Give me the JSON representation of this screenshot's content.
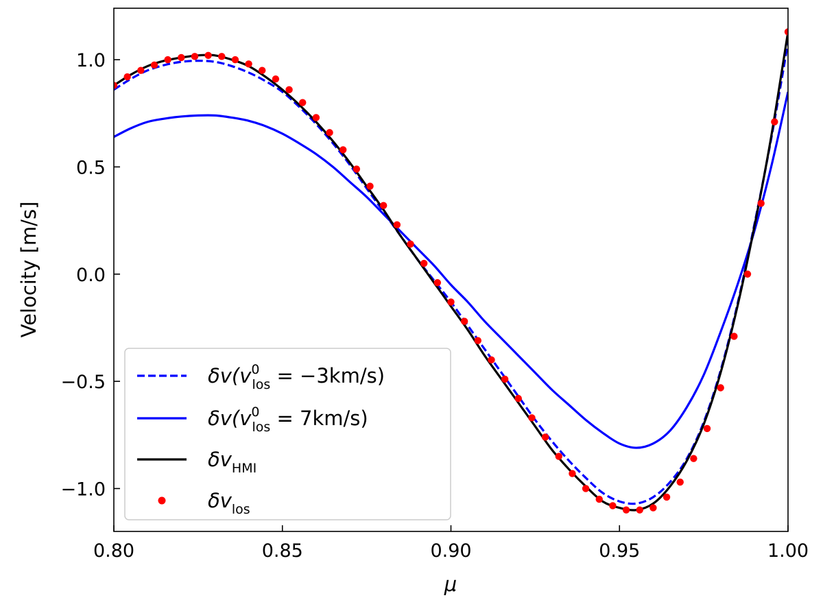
{
  "chart_data": {
    "type": "line",
    "xlabel": "μ",
    "ylabel": "Velocity [m/s]",
    "xlim": [
      0.8,
      1.0
    ],
    "ylim": [
      -1.2,
      1.24
    ],
    "xticks": [
      0.8,
      0.85,
      0.9,
      0.95,
      1.0
    ],
    "xtick_labels": [
      "0.80",
      "0.85",
      "0.90",
      "0.95",
      "1.00"
    ],
    "yticks": [
      1.0,
      0.5,
      0.0,
      -0.5,
      -1.0
    ],
    "ytick_labels": [
      "1.0",
      "0.5",
      "0.0",
      "−0.5",
      "−1.0"
    ],
    "grid": false,
    "legend_location": "lower-left",
    "series": [
      {
        "name": "δv(v⁰los = −3km/s)",
        "legend": {
          "main": "δv(v",
          "sup": "0",
          "sub": "los",
          "tail": " = −3km/s)"
        },
        "color": "#0000ff",
        "style": "dashed",
        "x": [
          0.8,
          0.805,
          0.81,
          0.815,
          0.82,
          0.825,
          0.83,
          0.835,
          0.84,
          0.845,
          0.85,
          0.855,
          0.86,
          0.865,
          0.87,
          0.875,
          0.88,
          0.885,
          0.89,
          0.895,
          0.9,
          0.905,
          0.91,
          0.915,
          0.92,
          0.925,
          0.93,
          0.935,
          0.94,
          0.945,
          0.95,
          0.955,
          0.96,
          0.965,
          0.97,
          0.975,
          0.98,
          0.985,
          0.99,
          0.995,
          1.0
        ],
        "y": [
          0.86,
          0.91,
          0.95,
          0.975,
          0.99,
          0.995,
          0.99,
          0.97,
          0.94,
          0.9,
          0.85,
          0.78,
          0.7,
          0.61,
          0.51,
          0.4,
          0.29,
          0.18,
          0.07,
          -0.03,
          -0.13,
          -0.24,
          -0.35,
          -0.46,
          -0.57,
          -0.68,
          -0.78,
          -0.87,
          -0.95,
          -1.02,
          -1.06,
          -1.07,
          -1.04,
          -0.97,
          -0.86,
          -0.69,
          -0.45,
          -0.14,
          0.23,
          0.63,
          1.08
        ]
      },
      {
        "name": "δv(v⁰los = 7km/s)",
        "legend": {
          "main": "δv(v",
          "sup": "0",
          "sub": "los",
          "tail": " = 7km/s)"
        },
        "color": "#0000ff",
        "style": "solid",
        "x": [
          0.8,
          0.805,
          0.81,
          0.815,
          0.82,
          0.825,
          0.83,
          0.835,
          0.84,
          0.845,
          0.85,
          0.855,
          0.86,
          0.865,
          0.87,
          0.875,
          0.88,
          0.885,
          0.89,
          0.895,
          0.9,
          0.905,
          0.91,
          0.915,
          0.92,
          0.925,
          0.93,
          0.935,
          0.94,
          0.945,
          0.95,
          0.955,
          0.96,
          0.965,
          0.97,
          0.975,
          0.98,
          0.985,
          0.99,
          0.995,
          1.0
        ],
        "y": [
          0.64,
          0.68,
          0.71,
          0.725,
          0.735,
          0.74,
          0.74,
          0.73,
          0.715,
          0.69,
          0.655,
          0.61,
          0.56,
          0.5,
          0.43,
          0.36,
          0.28,
          0.2,
          0.12,
          0.04,
          -0.05,
          -0.13,
          -0.22,
          -0.3,
          -0.38,
          -0.46,
          -0.54,
          -0.61,
          -0.68,
          -0.74,
          -0.79,
          -0.81,
          -0.79,
          -0.73,
          -0.62,
          -0.47,
          -0.27,
          -0.05,
          0.2,
          0.5,
          0.85
        ]
      },
      {
        "name": "δvHMI",
        "legend": {
          "main": "δv",
          "sub": "HMI"
        },
        "color": "#000000",
        "style": "solid",
        "x": [
          0.8,
          0.805,
          0.81,
          0.815,
          0.82,
          0.825,
          0.83,
          0.835,
          0.84,
          0.845,
          0.85,
          0.855,
          0.86,
          0.865,
          0.87,
          0.875,
          0.88,
          0.885,
          0.89,
          0.895,
          0.9,
          0.905,
          0.91,
          0.915,
          0.92,
          0.925,
          0.93,
          0.935,
          0.94,
          0.945,
          0.95,
          0.955,
          0.96,
          0.965,
          0.97,
          0.975,
          0.98,
          0.985,
          0.99,
          0.995,
          1.0
        ],
        "y": [
          0.88,
          0.93,
          0.97,
          0.995,
          1.01,
          1.02,
          1.02,
          1.0,
          0.97,
          0.92,
          0.86,
          0.79,
          0.71,
          0.62,
          0.52,
          0.41,
          0.3,
          0.18,
          0.07,
          -0.04,
          -0.15,
          -0.26,
          -0.38,
          -0.49,
          -0.6,
          -0.71,
          -0.82,
          -0.91,
          -0.99,
          -1.06,
          -1.09,
          -1.1,
          -1.07,
          -0.99,
          -0.87,
          -0.7,
          -0.46,
          -0.15,
          0.22,
          0.64,
          1.13
        ]
      },
      {
        "name": "δvlos",
        "legend": {
          "main": "δv",
          "sub": "los"
        },
        "color": "#ff0000",
        "style": "markers",
        "x": [
          0.8,
          0.804,
          0.808,
          0.812,
          0.816,
          0.82,
          0.824,
          0.828,
          0.832,
          0.836,
          0.84,
          0.844,
          0.848,
          0.852,
          0.856,
          0.86,
          0.864,
          0.868,
          0.872,
          0.876,
          0.88,
          0.884,
          0.888,
          0.892,
          0.896,
          0.9,
          0.904,
          0.908,
          0.912,
          0.916,
          0.92,
          0.924,
          0.928,
          0.932,
          0.936,
          0.94,
          0.944,
          0.948,
          0.952,
          0.956,
          0.96,
          0.964,
          0.968,
          0.972,
          0.976,
          0.98,
          0.984,
          0.988,
          0.992,
          0.996,
          1.0
        ],
        "y": [
          0.88,
          0.92,
          0.95,
          0.975,
          1.0,
          1.01,
          1.015,
          1.02,
          1.015,
          1.0,
          0.98,
          0.95,
          0.91,
          0.86,
          0.8,
          0.73,
          0.66,
          0.58,
          0.49,
          0.41,
          0.32,
          0.23,
          0.14,
          0.05,
          -0.04,
          -0.13,
          -0.22,
          -0.31,
          -0.4,
          -0.49,
          -0.58,
          -0.67,
          -0.76,
          -0.85,
          -0.93,
          -1.0,
          -1.05,
          -1.08,
          -1.1,
          -1.1,
          -1.09,
          -1.04,
          -0.97,
          -0.86,
          -0.72,
          -0.53,
          -0.29,
          0.0,
          0.33,
          0.71,
          1.13
        ]
      }
    ]
  }
}
